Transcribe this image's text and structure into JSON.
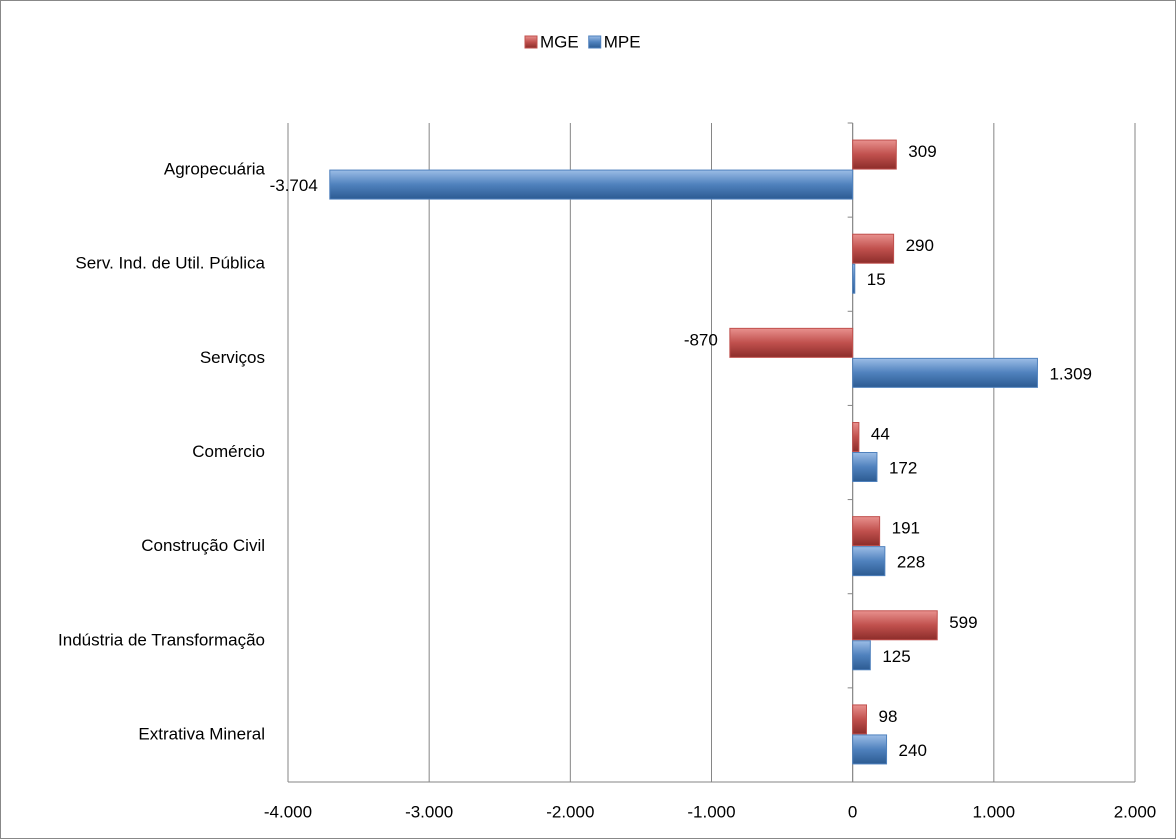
{
  "chart_data": {
    "type": "bar",
    "orientation": "horizontal",
    "categories": [
      "Agropecuária",
      "Serv. Ind. de Util.  Pública",
      "Serviços",
      "Comércio",
      "Construção Civil",
      "Indústria de Transformação",
      "Extrativa Mineral"
    ],
    "series": [
      {
        "name": "MGE",
        "color": "#c0504d",
        "values": [
          309,
          290,
          -870,
          44,
          191,
          599,
          98
        ],
        "value_labels": [
          "309",
          "290",
          "-870",
          "44",
          "191",
          "599",
          "98"
        ]
      },
      {
        "name": "MPE",
        "color": "#4f81bd",
        "values": [
          -3704,
          15,
          1309,
          172,
          228,
          125,
          240
        ],
        "value_labels": [
          "-3.704",
          "15",
          "1.309",
          "172",
          "228",
          "125",
          "240"
        ]
      }
    ],
    "xlim": [
      -4000,
      2000
    ],
    "xticks": [
      {
        "value": -4000,
        "label": "-4.000"
      },
      {
        "value": -3000,
        "label": "-3.000"
      },
      {
        "value": -2000,
        "label": "-2.000"
      },
      {
        "value": -1000,
        "label": "-1.000"
      },
      0,
      {
        "value": 1000,
        "label": "1.000"
      },
      {
        "value": 2000,
        "label": "2.000"
      }
    ],
    "grid": true,
    "legend": "top",
    "negative_color": "#ff0000"
  }
}
